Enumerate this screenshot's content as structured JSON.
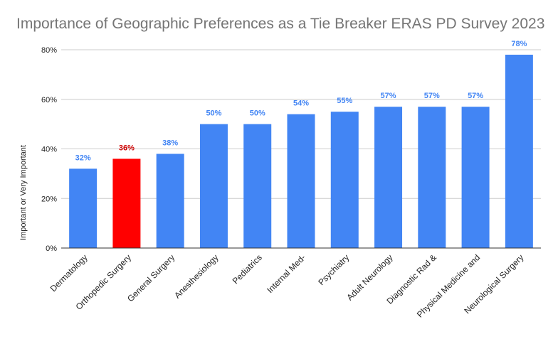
{
  "chart_data": {
    "type": "bar",
    "title": "Importance of Geographic Preferences as a Tie Breaker ERAS PD Survey 2023",
    "xlabel": "",
    "ylabel": "Important or Very Important",
    "ylim": [
      0,
      80
    ],
    "yticks": [
      0,
      20,
      40,
      60,
      80
    ],
    "ytick_labels": [
      "0%",
      "20%",
      "40%",
      "60%",
      "80%"
    ],
    "grid": true,
    "legend": "none",
    "categories": [
      "Dermatology",
      "Orthopedic Surgery",
      "General Surgery",
      "Anesthesiology",
      "Pediatrics",
      "Internal Med-",
      "Psychiatry",
      "Adult Neurology",
      "Diagnostic Rad &",
      "Physical Medicine and",
      "Neurological Surgery"
    ],
    "values": [
      32,
      36,
      38,
      50,
      50,
      54,
      55,
      57,
      57,
      57,
      78
    ],
    "data_labels": [
      "32%",
      "36%",
      "38%",
      "50%",
      "50%",
      "54%",
      "55%",
      "57%",
      "57%",
      "57%",
      "78%"
    ],
    "bar_colors": [
      "#4285f4",
      "#ff0000",
      "#4285f4",
      "#4285f4",
      "#4285f4",
      "#4285f4",
      "#4285f4",
      "#4285f4",
      "#4285f4",
      "#4285f4",
      "#4285f4"
    ],
    "label_colors": [
      "#4285f4",
      "#cc0000",
      "#4285f4",
      "#4285f4",
      "#4285f4",
      "#4285f4",
      "#4285f4",
      "#4285f4",
      "#4285f4",
      "#4285f4",
      "#4285f4"
    ],
    "grid_color": "#cccccc",
    "axis_color": "#333333"
  }
}
